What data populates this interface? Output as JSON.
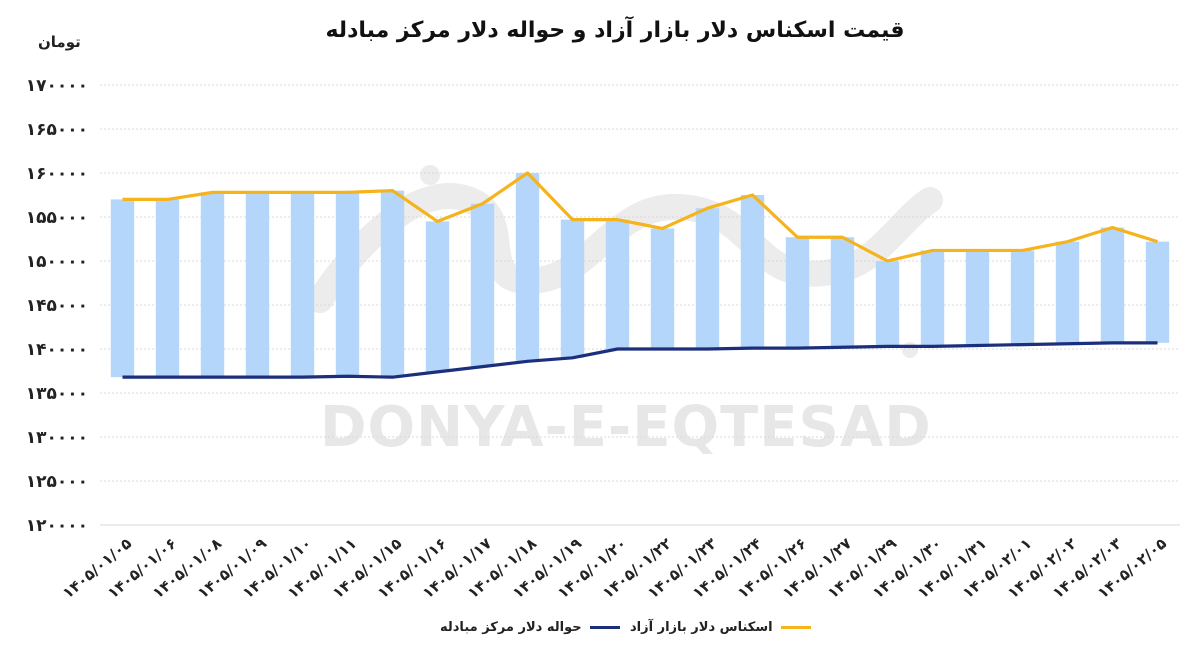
{
  "chart_data": {
    "type": "bar",
    "title": "قیمت اسکناس دلار بازار آزاد و حواله دلار مرکز مبادله",
    "unit_label": "تومان",
    "watermark": "DONYA-E-EQTESAD",
    "ylim": [
      120000,
      170000
    ],
    "y_ticks": [
      "۱۷۰۰۰۰",
      "۱۶۵۰۰۰",
      "۱۶۰۰۰۰",
      "۱۵۵۰۰۰",
      "۱۵۰۰۰۰",
      "۱۴۵۰۰۰",
      "۱۴۰۰۰۰",
      "۱۳۵۰۰۰",
      "۱۳۰۰۰۰",
      "۱۲۵۰۰۰",
      "۱۲۰۰۰۰"
    ],
    "y_tick_values": [
      170000,
      165000,
      160000,
      155000,
      150000,
      145000,
      140000,
      135000,
      130000,
      125000,
      120000
    ],
    "categories": [
      "۱۴۰۵/۰۱/۰۵",
      "۱۴۰۵/۰۱/۰۶",
      "۱۴۰۵/۰۱/۰۸",
      "۱۴۰۵/۰۱/۰۹",
      "۱۴۰۵/۰۱/۱۰",
      "۱۴۰۵/۰۱/۱۱",
      "۱۴۰۵/۰۱/۱۵",
      "۱۴۰۵/۰۱/۱۶",
      "۱۴۰۵/۰۱/۱۷",
      "۱۴۰۵/۰۱/۱۸",
      "۱۴۰۵/۰۱/۱۹",
      "۱۴۰۵/۰۱/۲۰",
      "۱۴۰۵/۰۱/۲۲",
      "۱۴۰۵/۰۱/۲۳",
      "۱۴۰۵/۰۱/۲۴",
      "۱۴۰۵/۰۱/۲۶",
      "۱۴۰۵/۰۱/۲۷",
      "۱۴۰۵/۰۱/۲۹",
      "۱۴۰۵/۰۱/۳۰",
      "۱۴۰۵/۰۱/۳۱",
      "۱۴۰۵/۰۲/۰۱",
      "۱۴۰۵/۰۲/۰۲",
      "۱۴۰۵/۰۲/۰۳",
      "۱۴۰۵/۰۲/۰۵"
    ],
    "series": [
      {
        "name": "اسکناس دلار بازار آزاد",
        "color": "#f5b31c",
        "values": [
          157000,
          157000,
          157800,
          157800,
          157800,
          157800,
          158000,
          154500,
          156500,
          160000,
          154700,
          154700,
          153700,
          156000,
          157500,
          152700,
          152700,
          150000,
          151200,
          151200,
          151200,
          152200,
          153800,
          152200
        ]
      },
      {
        "name": "حواله دلار مرکز مبادله",
        "color": "#1c2f7c",
        "values": [
          136800,
          136800,
          136800,
          136800,
          136800,
          136900,
          136800,
          137400,
          138000,
          138600,
          139000,
          140000,
          140000,
          140000,
          140100,
          140100,
          140200,
          140300,
          140300,
          140400,
          140500,
          140600,
          140700,
          140700
        ]
      }
    ],
    "bar_color": "#b3d6fa",
    "grid": true,
    "legend_position": "bottom"
  }
}
